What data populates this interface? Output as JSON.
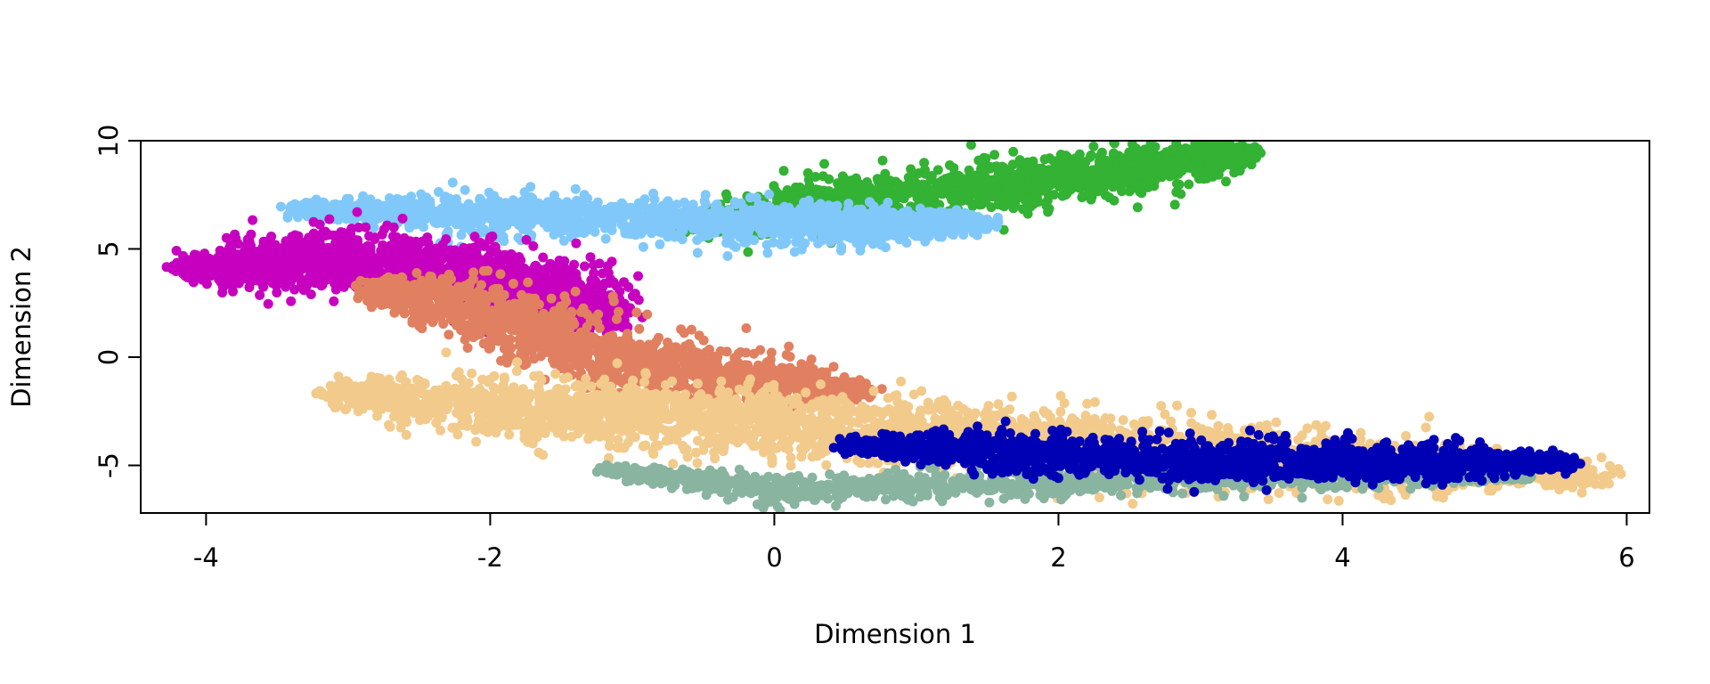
{
  "chart_data": {
    "type": "scatter",
    "title": "",
    "xlabel": "Dimension 1",
    "ylabel": "Dimension 2",
    "xlim": [
      -4.46,
      6.16
    ],
    "ylim": [
      -7.2,
      10.0
    ],
    "xticks": [
      -4,
      -2,
      0,
      2,
      4,
      6
    ],
    "yticks": [
      -5,
      0,
      5,
      10
    ],
    "grid": false,
    "legend": "none",
    "series": [
      {
        "color": "#33b233",
        "skeleton": [
          [
            -0.6,
            6.1
          ],
          [
            0.4,
            7.1
          ],
          [
            1.5,
            7.9
          ],
          [
            2.5,
            8.6
          ],
          [
            3.32,
            9.45
          ]
        ],
        "spread": 0.55,
        "count": 1500
      },
      {
        "color": "#80c8fa",
        "skeleton": [
          [
            -3.4,
            6.8
          ],
          [
            -2.0,
            6.6
          ],
          [
            -0.5,
            6.3
          ],
          [
            0.6,
            6.1
          ],
          [
            1.5,
            6.2
          ]
        ],
        "spread": 0.45,
        "count": 1600
      },
      {
        "color": "#c700c0",
        "skeleton": [
          [
            -4.1,
            4.0
          ],
          [
            -3.2,
            4.6
          ],
          [
            -2.3,
            4.2
          ],
          [
            -1.6,
            3.0
          ],
          [
            -1.2,
            1.8
          ]
        ],
        "spread": 0.65,
        "count": 2100
      },
      {
        "color": "#e08060",
        "skeleton": [
          [
            -2.8,
            3.2
          ],
          [
            -2.0,
            2.2
          ],
          [
            -1.4,
            0.4
          ],
          [
            -0.5,
            -0.8
          ],
          [
            0.6,
            -1.6
          ]
        ],
        "spread": 0.65,
        "count": 1500
      },
      {
        "color": "#f2ca8b",
        "skeleton": [
          [
            -3.1,
            -1.7
          ],
          [
            -1.5,
            -2.5
          ],
          [
            0.0,
            -3.0
          ],
          [
            1.5,
            -3.8
          ],
          [
            3.2,
            -4.6
          ],
          [
            5.8,
            -5.5
          ]
        ],
        "spread": 0.75,
        "count": 3000
      },
      {
        "color": "#88b4a0",
        "skeleton": [
          [
            -1.2,
            -5.2
          ],
          [
            0.0,
            -6.1
          ],
          [
            1.5,
            -5.9
          ],
          [
            3.0,
            -5.6
          ],
          [
            5.3,
            -5.5
          ]
        ],
        "spread": 0.32,
        "count": 1100
      },
      {
        "color": "#0000b4",
        "skeleton": [
          [
            0.5,
            -4.0
          ],
          [
            1.8,
            -4.4
          ],
          [
            3.0,
            -4.9
          ],
          [
            4.2,
            -4.8
          ],
          [
            5.6,
            -4.9
          ]
        ],
        "spread": 0.45,
        "count": 1700
      }
    ]
  }
}
